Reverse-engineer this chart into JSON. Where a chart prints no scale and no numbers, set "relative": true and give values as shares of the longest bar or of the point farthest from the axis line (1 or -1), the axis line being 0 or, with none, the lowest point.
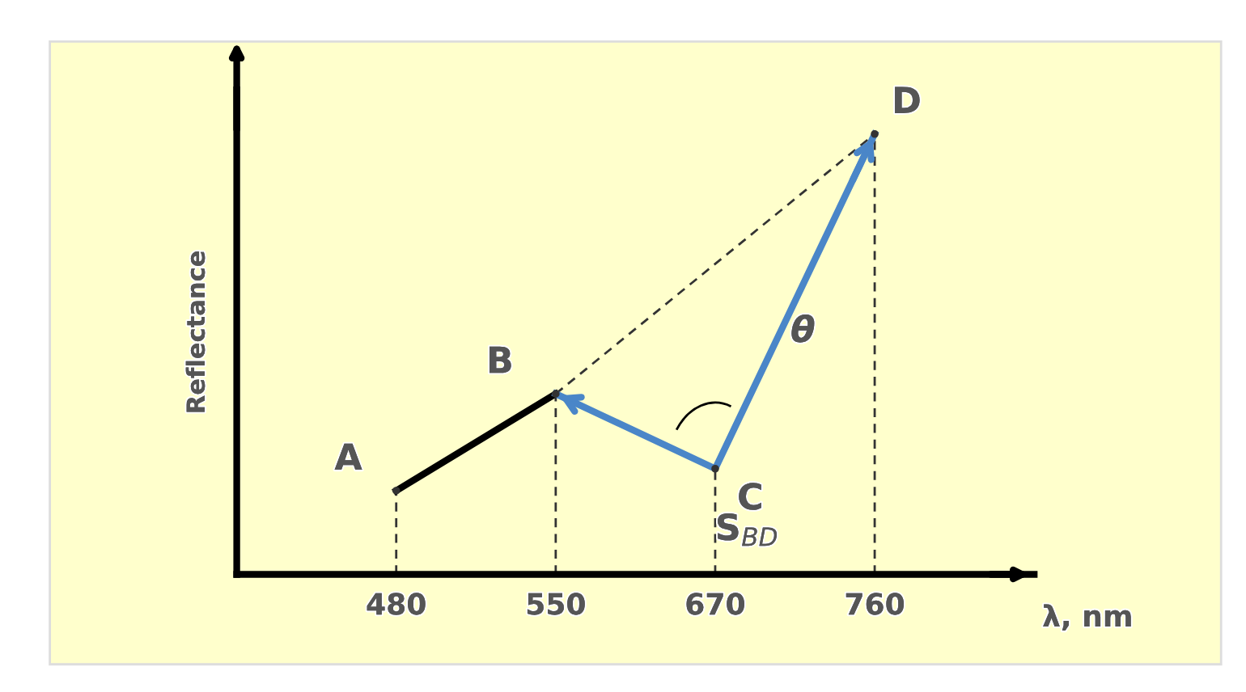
{
  "chart_data": {
    "type": "line",
    "relative": true,
    "ylabel": "Reflectance",
    "xlabel": "λ, nm",
    "categories": [
      "480",
      "550",
      "670",
      "760"
    ],
    "series": [
      {
        "type": "lollipop",
        "color": "#333333",
        "line_style": "dashed",
        "marker": "circle",
        "values": [
          0.19,
          0.41,
          0.24,
          1
        ]
      },
      {
        "type": "line",
        "color": "#000000",
        "values": [
          0.19,
          0.41,
          null,
          null
        ]
      },
      {
        "type": "line",
        "color": "#333333",
        "line_style": "dashed",
        "x": [
          "550",
          "760"
        ],
        "values": [
          0.41,
          1
        ]
      },
      {
        "type": "line",
        "color": "#4a86c8",
        "x": [
          "550",
          "670",
          "760"
        ],
        "values": [
          0.41,
          0.24,
          1
        ]
      }
    ],
    "annotations": [
      {
        "text": "A",
        "x": "480",
        "y": 0.19
      },
      {
        "text": "B",
        "x": "550",
        "y": 0.41
      },
      {
        "text": "C",
        "x": "670",
        "y": 0.24
      },
      {
        "text": "D",
        "x": "760",
        "y": 1
      },
      "θ",
      "S$_{BD}$"
    ],
    "legend": false
  }
}
